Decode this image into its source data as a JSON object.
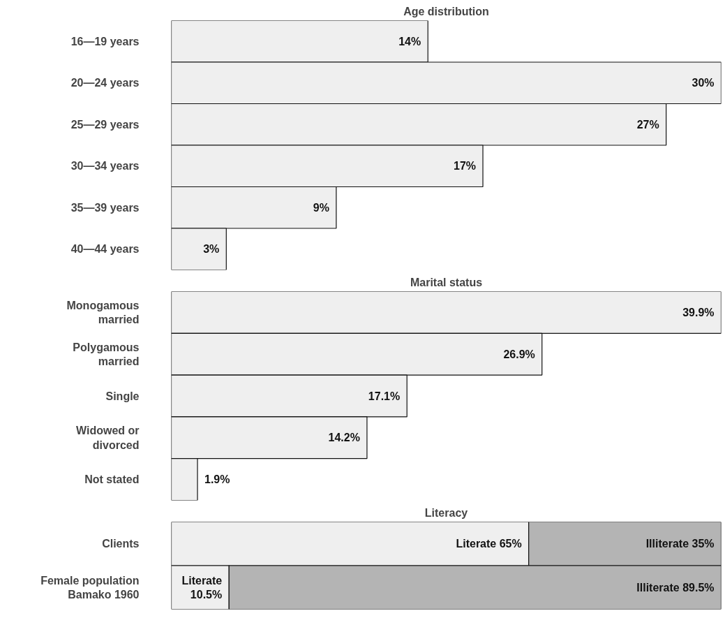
{
  "chart_data": [
    {
      "type": "bar",
      "orientation": "horizontal",
      "title": "Age distribution",
      "categories": [
        "16—19 years",
        "20—24 years",
        "25—29 years",
        "30—34 years",
        "35—39 years",
        "40—44 years"
      ],
      "values": [
        14,
        30,
        27,
        17,
        9,
        3
      ],
      "color": "#efefef",
      "value_labels": [
        "14%",
        "30%",
        "27%",
        "17%",
        "9%",
        "3%"
      ],
      "grid": false
    },
    {
      "type": "bar",
      "orientation": "horizontal",
      "title": "Marital status",
      "categories": [
        "Monogamous\nmarried",
        "Polygamous\nmarried",
        "Single",
        "Widowed or\ndivorced",
        "Not stated"
      ],
      "values": [
        39.9,
        26.9,
        17.1,
        14.2,
        1.9
      ],
      "color": "#efefef",
      "value_labels": [
        "39.9%",
        "26.9%",
        "17.1%",
        "14.2%",
        "1.9%"
      ],
      "grid": false
    },
    {
      "type": "bar",
      "orientation": "horizontal",
      "stacked": true,
      "title": "Literacy",
      "categories": [
        "Clients",
        "Female population\nBamako 1960"
      ],
      "grid": false,
      "series": [
        {
          "color": "#efefef",
          "values": [
            65,
            10.5
          ],
          "value_labels": [
            "Literate 65%",
            "Literate\n10.5%"
          ]
        },
        {
          "color": "#b4b4b4",
          "values": [
            35,
            89.5
          ],
          "value_labels": [
            "Illiterate 35%",
            "Illiterate 89.5%"
          ]
        }
      ]
    }
  ]
}
